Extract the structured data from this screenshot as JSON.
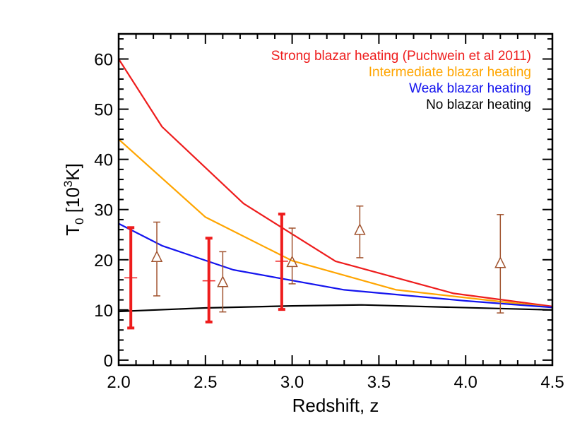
{
  "chart_data": {
    "type": "line",
    "title": "",
    "xlabel": "Redshift, z",
    "ylabel": {
      "base": "T",
      "sub": "0",
      "bracket_open": " [10",
      "sup": "3",
      "unit_close": "K]"
    },
    "xlim": [
      2.0,
      4.5
    ],
    "ylim": [
      -1,
      65
    ],
    "x_ticks": [
      2.0,
      2.5,
      3.0,
      3.5,
      4.0,
      4.5
    ],
    "x_tick_labels": [
      "2.0",
      "2.5",
      "3.0",
      "3.5",
      "4.0",
      "4.5"
    ],
    "y_ticks": [
      0,
      10,
      20,
      30,
      40,
      50,
      60
    ],
    "y_tick_labels": [
      "0",
      "10",
      "20",
      "30",
      "40",
      "50",
      "60"
    ],
    "grid": false,
    "legend_position": "top-right",
    "series": [
      {
        "name": "Strong blazar heating (Puchwein et al 2011)",
        "color": "#ee1c1c",
        "x": [
          2.0,
          2.25,
          2.72,
          3.25,
          3.93,
          4.5
        ],
        "y": [
          60.0,
          46.5,
          31.2,
          19.7,
          13.3,
          10.7
        ]
      },
      {
        "name": "Intermediate blazar heating",
        "color": "#ffa500",
        "x": [
          2.0,
          2.5,
          3.0,
          3.6,
          4.5
        ],
        "y": [
          44.0,
          28.5,
          19.8,
          14.0,
          10.5
        ]
      },
      {
        "name": "Weak blazar heating",
        "color": "#1414ee",
        "x": [
          2.0,
          2.25,
          2.66,
          3.3,
          4.0,
          4.5
        ],
        "y": [
          27.2,
          22.8,
          18.0,
          14.0,
          11.8,
          10.5
        ]
      },
      {
        "name": "No blazar heating",
        "color": "#000000",
        "x": [
          2.0,
          2.5,
          3.0,
          3.4,
          4.5
        ],
        "y": [
          9.7,
          10.4,
          10.8,
          11.0,
          10.0
        ]
      }
    ],
    "error_points_red": {
      "color": "#ee1c1c",
      "points": [
        {
          "x": 2.07,
          "y": 16.4,
          "ylow": 6.4,
          "yhigh": 26.4
        },
        {
          "x": 2.52,
          "y": 15.8,
          "ylow": 7.6,
          "yhigh": 24.3
        },
        {
          "x": 2.94,
          "y": 19.7,
          "ylow": 10.1,
          "yhigh": 29.1
        }
      ]
    },
    "error_points_brown": {
      "color": "#a0522d",
      "marker": "triangle",
      "points": [
        {
          "x": 2.22,
          "y": 20.5,
          "ylow": 12.8,
          "yhigh": 27.5
        },
        {
          "x": 2.6,
          "y": 15.5,
          "ylow": 9.6,
          "yhigh": 21.6
        },
        {
          "x": 3.0,
          "y": 19.5,
          "ylow": 15.2,
          "yhigh": 26.3
        },
        {
          "x": 3.39,
          "y": 25.9,
          "ylow": 20.4,
          "yhigh": 30.7
        },
        {
          "x": 4.2,
          "y": 19.3,
          "ylow": 9.4,
          "yhigh": 29.0
        }
      ]
    }
  }
}
